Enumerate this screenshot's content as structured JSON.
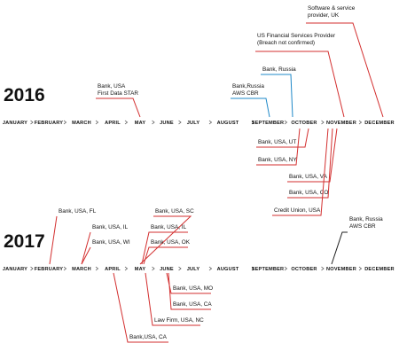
{
  "timelines": [
    {
      "year": "2016",
      "months": [
        "JANUARY",
        "FEBRUARY",
        "MARCH",
        "APRIL",
        "MAY",
        "JUNE",
        "JULY",
        "AUGUST",
        "SEPTEMBER",
        "OCTOBER",
        "NOVEMBER",
        "DECEMBER"
      ],
      "events": [
        {
          "lines": [
            "Bank, USA",
            "First Data STAR"
          ],
          "color": "#d32f2f"
        },
        {
          "lines": [
            "Bank,Russia",
            "AWS CBR"
          ],
          "color": "#1e88c8"
        },
        {
          "lines": [
            "Bank, Russia"
          ],
          "color": "#1e88c8"
        },
        {
          "lines": [
            "US Financial Services Provider",
            "(Breach not confirmed)"
          ],
          "color": "#d32f2f"
        },
        {
          "lines": [
            "Software & service",
            "provider, UK"
          ],
          "color": "#d32f2f"
        },
        {
          "lines": [
            "Bank, USA, UT"
          ],
          "color": "#d32f2f"
        },
        {
          "lines": [
            "Bank, USA, NY"
          ],
          "color": "#d32f2f"
        },
        {
          "lines": [
            "Bank, USA, VA"
          ],
          "color": "#d32f2f"
        },
        {
          "lines": [
            "Bank, USA, CO"
          ],
          "color": "#d32f2f"
        },
        {
          "lines": [
            "Credit Union, USA"
          ],
          "color": "#d32f2f"
        }
      ]
    },
    {
      "year": "2017",
      "months": [
        "JANUARY",
        "FEBRUARY",
        "MARCH",
        "APRIL",
        "MAY",
        "JUNE",
        "JULY",
        "AUGUST",
        "SEPTEMBER",
        "OCTOBER",
        "NOVEMBER",
        "DECEMBER"
      ],
      "events": [
        {
          "lines": [
            "Bank, USA, FL"
          ],
          "color": "#d32f2f"
        },
        {
          "lines": [
            "Bank, USA, IL"
          ],
          "color": "#d32f2f"
        },
        {
          "lines": [
            "Bank, USA, WI"
          ],
          "color": "#d32f2f"
        },
        {
          "lines": [
            "Bank, USA, SC"
          ],
          "color": "#d32f2f"
        },
        {
          "lines": [
            "Bank, USA, IL"
          ],
          "color": "#d32f2f"
        },
        {
          "lines": [
            "Bank, USA, OK"
          ],
          "color": "#d32f2f"
        },
        {
          "lines": [
            "Bank, Russia",
            "AWS CBR"
          ],
          "color": "#222222"
        },
        {
          "lines": [
            "Bank, USA, MO"
          ],
          "color": "#d32f2f"
        },
        {
          "lines": [
            "Bank, USA, CA"
          ],
          "color": "#d32f2f"
        },
        {
          "lines": [
            "Law Firm, USA, NC"
          ],
          "color": "#d32f2f"
        },
        {
          "lines": [
            "Bank,USA, CA"
          ],
          "color": "#d32f2f"
        }
      ]
    }
  ]
}
